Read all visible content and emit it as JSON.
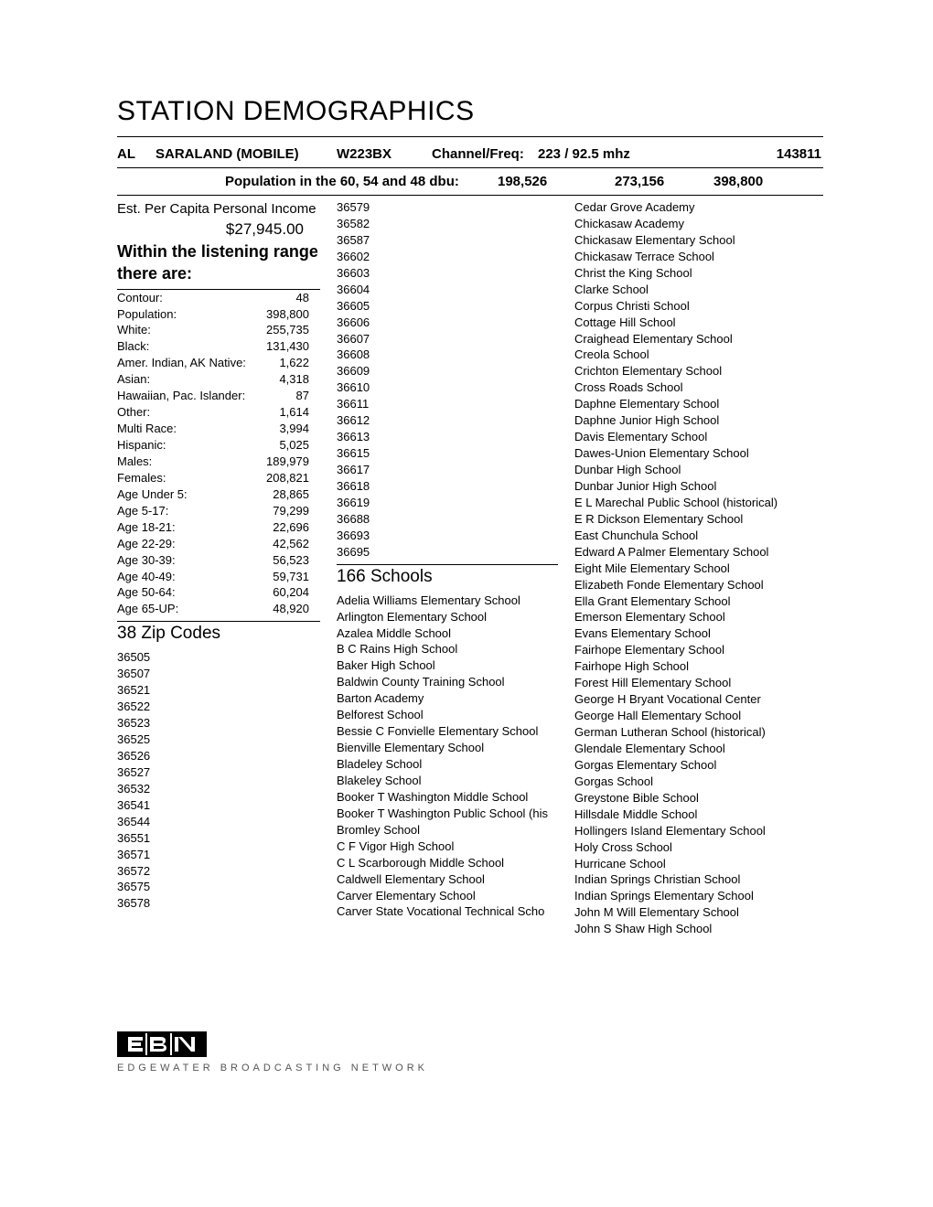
{
  "title": "STATION DEMOGRAPHICS",
  "header": {
    "state": "AL",
    "city": "SARALAND (MOBILE)",
    "callsign": "W223BX",
    "channel_freq_label": "Channel/Freq:",
    "channel_freq_value": "223 / 92.5 mhz",
    "id": "143811"
  },
  "population_row": {
    "label": "Population in the 60, 54 and 48 dbu:",
    "v1": "198,526",
    "v2": "273,156",
    "v3": "398,800"
  },
  "income": {
    "label": "Est. Per Capita Personal Income",
    "value": "$27,945.00"
  },
  "range_heading": "Within the listening range there are:",
  "stats": [
    {
      "label": "Contour:",
      "value": "48"
    },
    {
      "label": "Population:",
      "value": "398,800"
    },
    {
      "label": "White:",
      "value": "255,735"
    },
    {
      "label": "Black:",
      "value": "131,430"
    },
    {
      "label": "Amer. Indian, AK Native:",
      "value": "1,622"
    },
    {
      "label": "Asian:",
      "value": "4,318"
    },
    {
      "label": "Hawaiian, Pac. Islander:",
      "value": "87"
    },
    {
      "label": "Other:",
      "value": "1,614"
    },
    {
      "label": "Multi Race:",
      "value": "3,994"
    },
    {
      "label": "Hispanic:",
      "value": "5,025"
    },
    {
      "label": "Males:",
      "value": "189,979"
    },
    {
      "label": "Females:",
      "value": "208,821"
    },
    {
      "label": "Age Under 5:",
      "value": "28,865"
    },
    {
      "label": "Age 5-17:",
      "value": "79,299"
    },
    {
      "label": "Age 18-21:",
      "value": "22,696"
    },
    {
      "label": "Age 22-29:",
      "value": "42,562"
    },
    {
      "label": "Age 30-39:",
      "value": "56,523"
    },
    {
      "label": "Age 40-49:",
      "value": "59,731"
    },
    {
      "label": "Age 50-64:",
      "value": "60,204"
    },
    {
      "label": "Age 65-UP:",
      "value": "48,920"
    }
  ],
  "zip_heading": "38 Zip Codes",
  "zip_col1": [
    "36505",
    "36507",
    "36521",
    "36522",
    "36523",
    "36525",
    "36526",
    "36527",
    "36532",
    "36541",
    "36544",
    "36551",
    "36571",
    "36572",
    "36575",
    "36578"
  ],
  "zip_col2_top": [
    "36579",
    "36582",
    "36587",
    "36602",
    "36603",
    "36604",
    "36605",
    "36606",
    "36607",
    "36608",
    "36609",
    "36610",
    "36611",
    "36612",
    "36613",
    "36615",
    "36617",
    "36618",
    "36619",
    "36688",
    "36693",
    "36695"
  ],
  "schools_heading": "166 Schools",
  "schools_col2": [
    "Adelia Williams Elementary School",
    "Arlington Elementary School",
    "Azalea Middle School",
    "B C Rains High School",
    "Baker High School",
    "Baldwin County Training School",
    "Barton Academy",
    "Belforest School",
    "Bessie C Fonvielle Elementary School",
    "Bienville Elementary School",
    "Bladeley School",
    "Blakeley School",
    "Booker T Washington Middle School",
    "Booker T Washington Public School (his",
    "Bromley School",
    "C F Vigor High School",
    "C L Scarborough Middle School",
    "Caldwell Elementary School",
    "Carver Elementary School",
    "Carver State Vocational Technical Scho"
  ],
  "schools_col3": [
    "Cedar Grove Academy",
    "Chickasaw Academy",
    "Chickasaw Elementary School",
    "Chickasaw Terrace School",
    "Christ the King School",
    "Clarke School",
    "Corpus Christi School",
    "Cottage Hill School",
    "Craighead Elementary School",
    "Creola School",
    "Crichton Elementary School",
    "Cross Roads School",
    "Daphne Elementary School",
    "Daphne Junior High School",
    "Davis Elementary School",
    "Dawes-Union Elementary School",
    "Dunbar High School",
    "Dunbar Junior High School",
    "E L Marechal Public School (historical)",
    "E R Dickson Elementary School",
    "East Chunchula School",
    "Edward A Palmer Elementary School",
    "Eight Mile Elementary School",
    "Elizabeth Fonde Elementary School",
    "Ella Grant Elementary School",
    "Emerson Elementary School",
    "Evans Elementary School",
    "Fairhope Elementary School",
    "Fairhope High School",
    "Forest Hill Elementary School",
    "George H Bryant Vocational Center",
    "George Hall Elementary School",
    "German Lutheran School (historical)",
    "Glendale Elementary School",
    "Gorgas Elementary School",
    "Gorgas School",
    "Greystone Bible School",
    "Hillsdale Middle School",
    "Hollingers Island Elementary School",
    "Holy Cross School",
    "Hurricane School",
    "Indian Springs Christian School",
    "Indian Springs Elementary School",
    "John M Will Elementary School",
    "John S Shaw High School"
  ],
  "footer": {
    "logo_text": "EBN",
    "company": "EDGEWATER BROADCASTING NETWORK"
  }
}
